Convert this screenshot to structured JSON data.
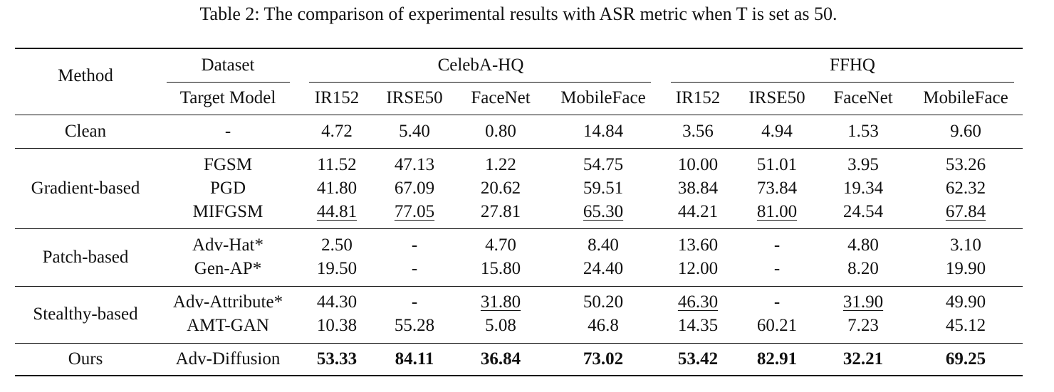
{
  "caption": "Table 2: The comparison of experimental results with ASR metric when T is set as 50.",
  "header": {
    "method": "Method",
    "dataset": "Dataset",
    "target_model": "Target Model",
    "datasets": [
      "CelebA-HQ",
      "FFHQ"
    ],
    "models": [
      "IR152",
      "IRSE50",
      "FaceNet",
      "MobileFace",
      "IR152",
      "IRSE50",
      "FaceNet",
      "MobileFace"
    ]
  },
  "groups": [
    {
      "name": "Clean",
      "rows": [
        {
          "method": "-",
          "values": [
            "4.72",
            "5.40",
            "0.80",
            "14.84",
            "3.56",
            "4.94",
            "1.53",
            "9.60"
          ],
          "underline": [],
          "bold": []
        }
      ]
    },
    {
      "name": "Gradient-based",
      "rows": [
        {
          "method": "FGSM",
          "values": [
            "11.52",
            "47.13",
            "1.22",
            "54.75",
            "10.00",
            "51.01",
            "3.95",
            "53.26"
          ],
          "underline": [],
          "bold": []
        },
        {
          "method": "PGD",
          "values": [
            "41.80",
            "67.09",
            "20.62",
            "59.51",
            "38.84",
            "73.84",
            "19.34",
            "62.32"
          ],
          "underline": [],
          "bold": []
        },
        {
          "method": "MIFGSM",
          "values": [
            "44.81",
            "77.05",
            "27.81",
            "65.30",
            "44.21",
            "81.00",
            "24.54",
            "67.84"
          ],
          "underline": [
            0,
            1,
            3,
            5,
            7
          ],
          "bold": []
        }
      ]
    },
    {
      "name": "Patch-based",
      "rows": [
        {
          "method": "Adv-Hat*",
          "values": [
            "2.50",
            "-",
            "4.70",
            "8.40",
            "13.60",
            "-",
            "4.80",
            "3.10"
          ],
          "underline": [],
          "bold": []
        },
        {
          "method": "Gen-AP*",
          "values": [
            "19.50",
            "-",
            "15.80",
            "24.40",
            "12.00",
            "-",
            "8.20",
            "19.90"
          ],
          "underline": [],
          "bold": []
        }
      ]
    },
    {
      "name": "Stealthy-based",
      "rows": [
        {
          "method": "Adv-Attribute*",
          "values": [
            "44.30",
            "-",
            "31.80",
            "50.20",
            "46.30",
            "-",
            "31.90",
            "49.90"
          ],
          "underline": [
            2,
            4,
            6
          ],
          "bold": []
        },
        {
          "method": "AMT-GAN",
          "values": [
            "10.38",
            "55.28",
            "5.08",
            "46.8",
            "14.35",
            "60.21",
            "7.23",
            "45.12"
          ],
          "underline": [],
          "bold": []
        }
      ]
    },
    {
      "name": "Ours",
      "rows": [
        {
          "method": "Adv-Diffusion",
          "values": [
            "53.33",
            "84.11",
            "36.84",
            "73.02",
            "53.42",
            "82.91",
            "32.21",
            "69.25"
          ],
          "underline": [],
          "bold": [
            0,
            1,
            2,
            3,
            4,
            5,
            6,
            7
          ]
        }
      ]
    }
  ]
}
